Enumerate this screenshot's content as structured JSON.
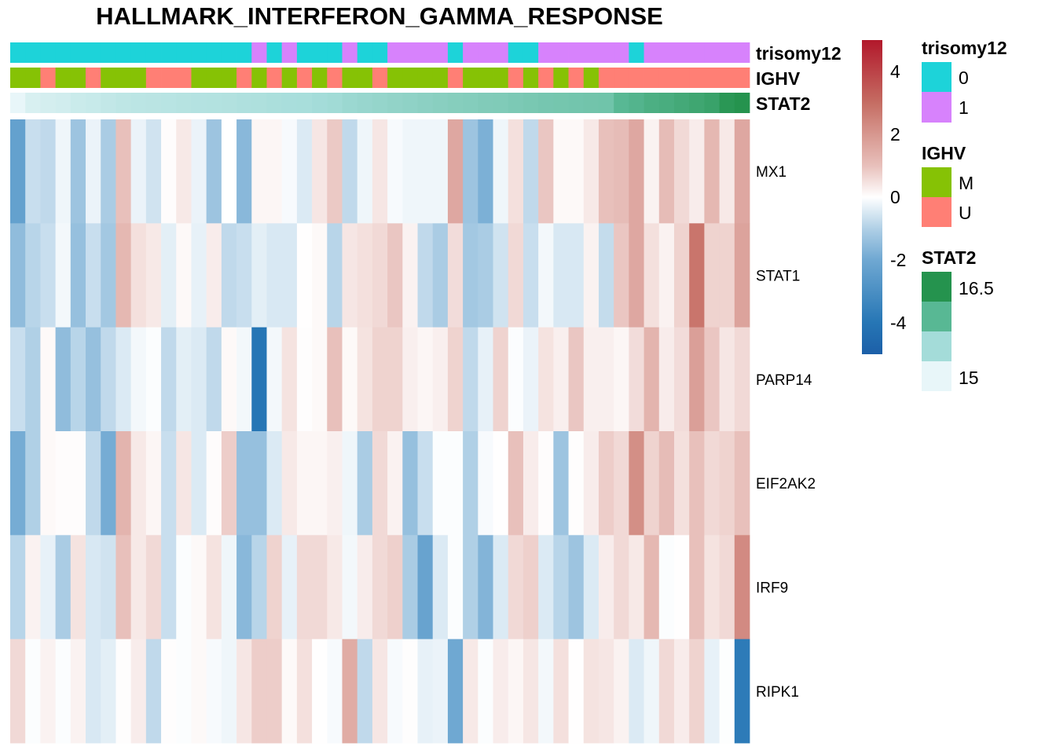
{
  "chart_data": {
    "type": "heatmap",
    "title": "HALLMARK_INTERFERON_GAMMA_RESPONSE",
    "rows": [
      "MX1",
      "STAT1",
      "PARP14",
      "EIF2AK2",
      "IRF9",
      "RIPK1"
    ],
    "n_columns": 49,
    "values": [
      [
        -2.3,
        -0.7,
        -0.8,
        -0.2,
        -1.3,
        -0.25,
        -1.1,
        1.0,
        -0.25,
        -0.6,
        0.05,
        0.35,
        -0.25,
        -1.3,
        0,
        -1.6,
        0.15,
        0.15,
        -0.1,
        -0.45,
        0.4,
        0.85,
        -0.8,
        -0.2,
        0.4,
        -0.1,
        -0.2,
        -0.2,
        -0.2,
        1.6,
        -1.3,
        -1.8,
        -0.2,
        0.5,
        -0.8,
        0.9,
        0.1,
        0.1,
        0.35,
        1.0,
        1.1,
        1.6,
        0.2,
        1.1,
        0.6,
        0.3,
        1.2,
        0.35,
        1.6
      ],
      [
        -1.5,
        -0.9,
        -0.7,
        -0.15,
        -1.4,
        -0.7,
        -1.2,
        1.2,
        0.5,
        0.35,
        -0.35,
        0.1,
        -0.3,
        0.3,
        -0.8,
        -0.7,
        -0.35,
        -0.5,
        -0.5,
        0.02,
        0.1,
        -0.9,
        0.4,
        0.5,
        0.6,
        0.9,
        0.2,
        -0.8,
        -1.1,
        0.55,
        -1.2,
        -1.1,
        -0.6,
        0.6,
        -0.7,
        -0.15,
        -0.5,
        -0.5,
        0.2,
        -0.75,
        0.9,
        1.6,
        0.5,
        0.2,
        0.7,
        2.8,
        0.7,
        0.7,
        1.7
      ],
      [
        -0.7,
        -1.0,
        0.1,
        -1.5,
        -0.9,
        -1.4,
        -0.8,
        -0.45,
        -0.15,
        -0.05,
        -0.8,
        -0.35,
        -0.45,
        -0.8,
        0.1,
        -0.15,
        -4.0,
        -0.15,
        0.45,
        0.03,
        0.1,
        1.0,
        0.1,
        0.45,
        0.7,
        0.7,
        0.25,
        0.15,
        0.25,
        0.7,
        -0.8,
        -0.3,
        0.7,
        -0.05,
        -0.25,
        0.45,
        0.25,
        0.9,
        0.25,
        0.25,
        0.15,
        0.55,
        1.3,
        0.3,
        0.55,
        1.8,
        0.9,
        0.4,
        0.6
      ],
      [
        -1.9,
        -1.0,
        0.1,
        0.05,
        0.05,
        -0.8,
        -1.9,
        1.3,
        0.35,
        0.15,
        -0.7,
        0.4,
        -0.45,
        0.05,
        0.8,
        -1.4,
        -1.4,
        -0.45,
        0.35,
        0.15,
        0.15,
        0.25,
        -0.2,
        -1.1,
        0.6,
        0.2,
        -1.4,
        -0.7,
        -0.05,
        -0.05,
        -1.0,
        -0.1,
        0.02,
        1.0,
        0.3,
        0.05,
        -1.3,
        0.03,
        0.3,
        0.8,
        0.6,
        2.2,
        0.7,
        1.1,
        0.5,
        1.0,
        0.6,
        0.7,
        1.0
      ],
      [
        -0.9,
        0.2,
        -0.3,
        -1.1,
        0.45,
        -0.5,
        -0.6,
        1.0,
        0.35,
        0.6,
        -0.7,
        -0.05,
        0.1,
        0.45,
        -0.2,
        -1.6,
        -0.9,
        0.7,
        -0.3,
        0.6,
        0.6,
        0.35,
        -0.15,
        0.3,
        0.6,
        0.75,
        -1.1,
        -2.2,
        -0.45,
        -0.05,
        -1.0,
        -1.7,
        -0.45,
        0.6,
        0.75,
        -0.45,
        -0.9,
        -1.3,
        -0.45,
        0.3,
        0.6,
        0.35,
        1.2,
        -0.05,
        0.02,
        1.0,
        0.45,
        0.6,
        2.3
      ],
      [
        0.6,
        -0.05,
        0.2,
        -0.05,
        0.2,
        -0.5,
        -0.35,
        0.03,
        0.3,
        -0.8,
        0.03,
        -0.05,
        0.1,
        -0.1,
        -0.2,
        0.4,
        0.8,
        0.8,
        0.1,
        0.5,
        0.02,
        -0.1,
        1.5,
        -0.8,
        0.4,
        -0.1,
        0.03,
        -0.3,
        -0.25,
        -2.0,
        0.35,
        -0.05,
        0.3,
        0.15,
        0.4,
        -0.15,
        0.5,
        0.02,
        0.45,
        0.4,
        0.2,
        -0.45,
        -0.2,
        0.6,
        0.3,
        0.7,
        -0.3,
        -0.03,
        -3.8
      ]
    ],
    "annotations": {
      "trisomy12": [
        0,
        0,
        0,
        0,
        0,
        0,
        0,
        0,
        0,
        0,
        0,
        0,
        0,
        0,
        0,
        0,
        1,
        0,
        1,
        0,
        0,
        0,
        1,
        0,
        0,
        1,
        1,
        1,
        1,
        0,
        1,
        1,
        1,
        0,
        0,
        1,
        1,
        1,
        1,
        1,
        1,
        0,
        1,
        1,
        1,
        1,
        1,
        1,
        1
      ],
      "IGHV": [
        "M",
        "M",
        "U",
        "M",
        "M",
        "U",
        "M",
        "M",
        "M",
        "U",
        "U",
        "U",
        "M",
        "M",
        "M",
        "U",
        "M",
        "U",
        "M",
        "U",
        "M",
        "U",
        "M",
        "M",
        "U",
        "M",
        "M",
        "M",
        "M",
        "U",
        "M",
        "M",
        "M",
        "U",
        "M",
        "U",
        "M",
        "U",
        "M",
        "U",
        "U",
        "U",
        "U",
        "U",
        "U",
        "U",
        "U",
        "U",
        "U"
      ],
      "STAT2": [
        15.0,
        15.12,
        15.15,
        15.17,
        15.22,
        15.24,
        15.28,
        15.31,
        15.33,
        15.34,
        15.35,
        15.37,
        15.38,
        15.39,
        15.4,
        15.42,
        15.43,
        15.45,
        15.46,
        15.47,
        15.5,
        15.52,
        15.56,
        15.58,
        15.6,
        15.62,
        15.64,
        15.66,
        15.68,
        15.7,
        15.71,
        15.73,
        15.74,
        15.76,
        15.78,
        15.8,
        15.81,
        15.82,
        15.83,
        15.84,
        16.0,
        16.05,
        16.12,
        16.15,
        16.2,
        16.25,
        16.3,
        16.45,
        16.6
      ]
    },
    "annotation_labels": [
      "trisomy12",
      "IGHV",
      "STAT2"
    ],
    "color_scale": {
      "range": [
        -5,
        5
      ],
      "ticks": [
        "4",
        "2",
        "0",
        "-2",
        "-4"
      ],
      "tick_values": [
        4,
        2,
        0,
        -2,
        -4
      ],
      "low": "#1C5FA8",
      "mid": "#FFFFFF",
      "high": "#B2182B"
    },
    "legends": {
      "trisomy12": {
        "title": "trisomy12",
        "levels": [
          "0",
          "1"
        ],
        "colors": [
          "#1DD3D9",
          "#D782FC"
        ]
      },
      "IGHV": {
        "title": "IGHV",
        "levels": [
          "M",
          "U"
        ],
        "colors": [
          "#86C205",
          "#FF7F75"
        ]
      },
      "STAT2": {
        "title": "STAT2",
        "labels": [
          "16.5",
          "15"
        ],
        "colors": [
          "#25934E",
          "#58B894",
          "#A4DCD9",
          "#E8F6F9"
        ],
        "range": [
          15,
          16.5
        ]
      }
    }
  }
}
